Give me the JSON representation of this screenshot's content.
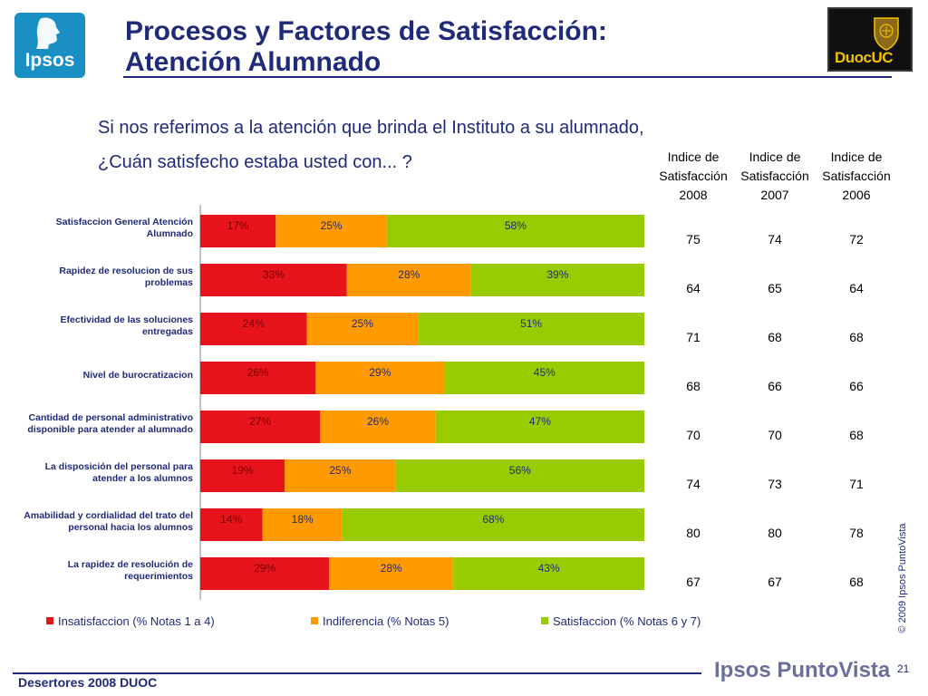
{
  "header": {
    "title_line1": "Procesos y Factores de Satisfacción:",
    "title_line2": "Atención Alumnado",
    "logo_left": "Ipsos",
    "logo_right": "DuocUC"
  },
  "question": {
    "line1": "Si nos referimos a la atención que brinda el Instituto a su alumnado,",
    "line2": "¿Cuán satisfecho estaba usted con... ?"
  },
  "index_table": {
    "headers": [
      {
        "line1": "Indice de",
        "line2": "Satisfacción",
        "line3": "2008"
      },
      {
        "line1": "Indice de",
        "line2": "Satisfacción",
        "line3": "2007"
      },
      {
        "line1": "Indice de",
        "line2": "Satisfacción",
        "line3": "2006"
      }
    ],
    "rows": [
      [
        "75",
        "74",
        "72"
      ],
      [
        "64",
        "65",
        "64"
      ],
      [
        "71",
        "68",
        "68"
      ],
      [
        "68",
        "66",
        "66"
      ],
      [
        "70",
        "70",
        "68"
      ],
      [
        "74",
        "73",
        "71"
      ],
      [
        "80",
        "80",
        "78"
      ],
      [
        "67",
        "67",
        "68"
      ]
    ]
  },
  "chart_data": {
    "type": "bar",
    "orientation": "horizontal",
    "stacked": true,
    "percent": true,
    "xlim": [
      0,
      100
    ],
    "grid": false,
    "legend_position": "bottom",
    "categories": [
      {
        "line1": "Satisfaccion General Atención",
        "line2": "Alumnado"
      },
      {
        "line1": "Rapidez de resolucion de sus",
        "line2": "problemas"
      },
      {
        "line1": "Efectividad de las soluciones",
        "line2": "entregadas"
      },
      {
        "line1": "Nivel de burocratizacion",
        "line2": ""
      },
      {
        "line1": "Cantidad de personal administrativo",
        "line2": "disponible para atender al alumnado"
      },
      {
        "line1": "La disposición del personal para",
        "line2": "atender a los alumnos"
      },
      {
        "line1": "Amabilidad y cordialidad del trato del",
        "line2": "personal hacia los alumnos"
      },
      {
        "line1": "La rapidez de resolución de",
        "line2": "requerimientos"
      }
    ],
    "series": [
      {
        "name": "Insatisfaccion (% Notas 1 a 4)",
        "color": "#e8141c",
        "label_color": "#7a0000",
        "values": [
          17,
          33,
          24,
          26,
          27,
          19,
          14,
          29
        ]
      },
      {
        "name": "Indiferencia (% Notas 5)",
        "color": "#ff9a00",
        "label_color": "#1f2a7a",
        "values": [
          25,
          28,
          25,
          29,
          26,
          25,
          18,
          28
        ]
      },
      {
        "name": "Satisfaccion (% Notas 6 y 7)",
        "color": "#99cc00",
        "label_color": "#1f2a7a",
        "values": [
          58,
          39,
          51,
          45,
          47,
          56,
          68,
          43
        ]
      }
    ]
  },
  "side_note": "© 2009 Ipsos PuntoVista",
  "footer": {
    "left_text": "Desertores 2008 DUOC",
    "brand": "Ipsos PuntoVista",
    "page_number": "21"
  }
}
